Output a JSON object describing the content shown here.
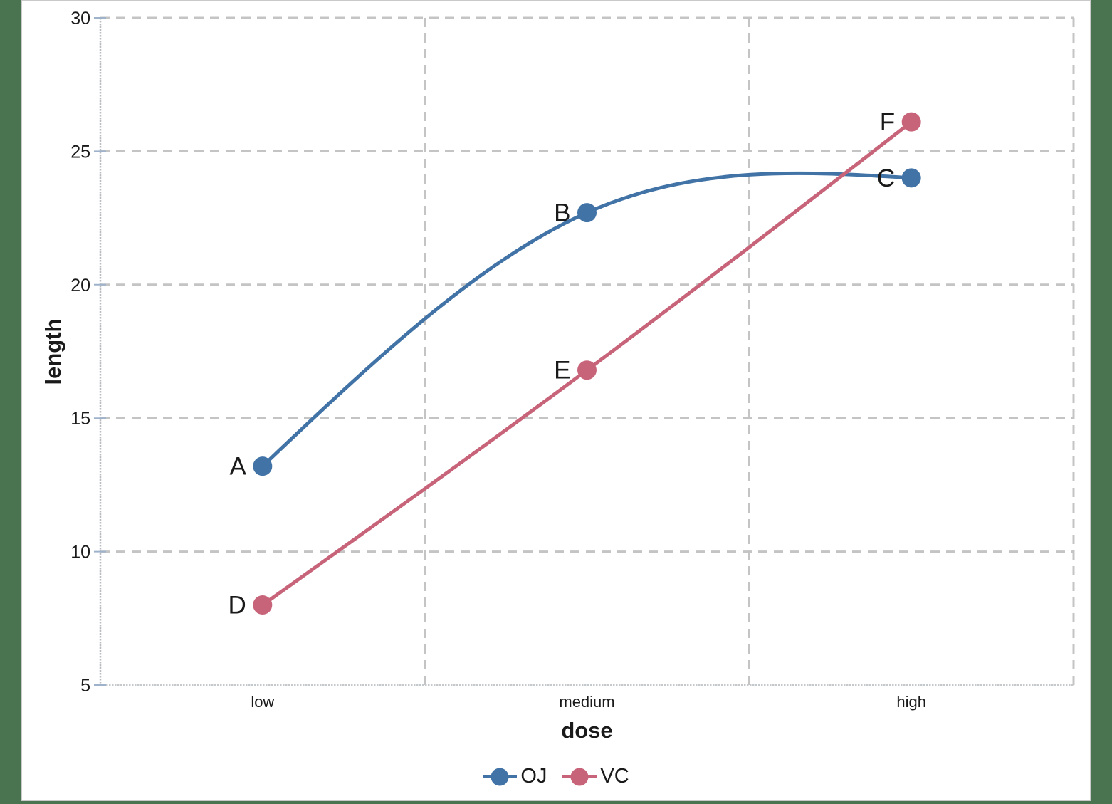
{
  "window": {
    "background_color": "#4A7350",
    "panel_background": "#FFFFFF",
    "panel_border_color": "#C9C9C9"
  },
  "chart_data": {
    "type": "line",
    "title": "",
    "categories": [
      "low",
      "medium",
      "high"
    ],
    "series": [
      {
        "name": "OJ",
        "color": "#4173A6",
        "values": [
          13.2,
          22.7,
          24.0
        ],
        "point_labels": [
          "A",
          "B",
          "C"
        ]
      },
      {
        "name": "VC",
        "color": "#C8647A",
        "values": [
          8.0,
          16.8,
          26.1
        ],
        "point_labels": [
          "D",
          "E",
          "F"
        ]
      }
    ],
    "xlabel": "dose",
    "ylabel": "length",
    "ylim": [
      5,
      30
    ],
    "yticks": [
      5,
      10,
      15,
      20,
      25,
      30
    ],
    "grid": "dashed",
    "grid_color": "#C4C4C4",
    "axis_line_color": "#B9BDC2",
    "bottom_axis_color": "#C6C9CC",
    "tick_mark_color": "#9FB2CC",
    "text_color": "#1A1A1A",
    "line_style": "smooth",
    "marker": "circle",
    "legend_position": "bottom-center"
  }
}
